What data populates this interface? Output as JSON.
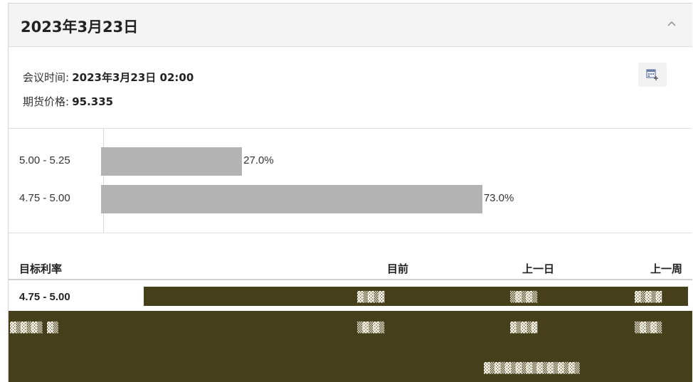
{
  "header": {
    "title": "2023年3月23日",
    "collapse_icon": "chevron-up-icon"
  },
  "meeting": {
    "time_label": "会议时间:",
    "time_value": "2023年3月23日 02:00",
    "price_label": "期货价格:",
    "price_value": "95.335",
    "calendar_icon": "calendar-add-icon"
  },
  "chart_data": {
    "type": "bar",
    "orientation": "horizontal",
    "categories": [
      "5.00 - 5.25",
      "4.75 - 5.00"
    ],
    "values": [
      27.0,
      73.0
    ],
    "value_labels": [
      "27.0%",
      "73.0%"
    ],
    "bar_color": "#b3b3b3"
  },
  "table": {
    "headers": [
      "目标利率",
      "目前",
      "上一日",
      "上一周"
    ],
    "rows": [
      {
        "rate": "4.75 - 5.00"
      }
    ]
  },
  "colors": {
    "glitch": "#463f1c",
    "header_bg": "#f4f4f4"
  }
}
